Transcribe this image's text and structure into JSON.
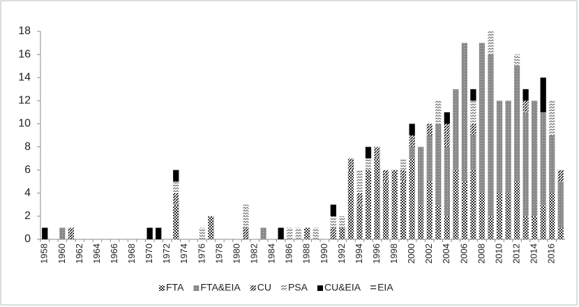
{
  "chart_data": {
    "type": "stacked-bar",
    "categories": [
      "1958",
      null,
      "1960",
      null,
      "1962",
      null,
      "1964",
      null,
      "1966",
      null,
      "1968",
      null,
      "1970",
      null,
      "1972",
      null,
      "1974",
      null,
      "1976",
      null,
      "1978",
      null,
      "1980",
      null,
      "1982",
      null,
      "1984",
      null,
      "1986",
      null,
      "1988",
      null,
      "1990",
      null,
      "1992",
      null,
      "1994",
      null,
      "1996",
      null,
      "1998",
      null,
      "2000",
      null,
      "2002",
      null,
      "2004",
      null,
      "2006",
      null,
      "2008",
      null,
      "2010",
      null,
      "2012",
      null,
      "2014",
      null,
      "2016",
      null
    ],
    "series": [
      {
        "name": "FTA",
        "color": "#222222",
        "pattern": "checker",
        "values": [
          0,
          0,
          0,
          0,
          0,
          0,
          0,
          0,
          0,
          0,
          0,
          0,
          0,
          0,
          0,
          3,
          0,
          0,
          0,
          2,
          0,
          0,
          0,
          0,
          0,
          0,
          0,
          0,
          0,
          0,
          1,
          0,
          0,
          0,
          1,
          6,
          3,
          6,
          7,
          5,
          6,
          5,
          7,
          3,
          5,
          3,
          2,
          6,
          5,
          6,
          4,
          2,
          4,
          4,
          5,
          2,
          2,
          3,
          4,
          1
        ]
      },
      {
        "name": "FTA&EIA",
        "color": "#8a8a8a",
        "pattern": "dots",
        "values": [
          0,
          0,
          1,
          0,
          0,
          0,
          0,
          0,
          0,
          0,
          0,
          0,
          0,
          0,
          0,
          0,
          0,
          0,
          0,
          0,
          0,
          0,
          0,
          0,
          0,
          1,
          0,
          0,
          0,
          0,
          0,
          0,
          0,
          0,
          0,
          0,
          0,
          0,
          0,
          0,
          0,
          0,
          1,
          5,
          4,
          7,
          6,
          7,
          12,
          3,
          13,
          14,
          8,
          8,
          10,
          9,
          10,
          8,
          5,
          4
        ]
      },
      {
        "name": "CU",
        "color": "#111111",
        "pattern": "diagonal",
        "values": [
          0,
          0,
          0,
          1,
          0,
          0,
          0,
          0,
          0,
          0,
          0,
          0,
          0,
          0,
          0,
          1,
          0,
          0,
          0,
          0,
          0,
          0,
          0,
          1,
          0,
          0,
          0,
          0,
          0,
          0,
          0,
          0,
          0,
          1,
          0,
          1,
          1,
          0,
          1,
          1,
          0,
          1,
          1,
          0,
          1,
          0,
          2,
          0,
          0,
          1,
          0,
          0,
          0,
          0,
          0,
          1,
          0,
          0,
          0,
          1
        ]
      },
      {
        "name": "PSA",
        "color": "#666666",
        "pattern": "chevron",
        "values": [
          0,
          0,
          0,
          0,
          0,
          0,
          0,
          0,
          0,
          0,
          0,
          0,
          0,
          0,
          0,
          1,
          0,
          0,
          1,
          0,
          0,
          0,
          0,
          2,
          0,
          0,
          0,
          0,
          1,
          1,
          0,
          1,
          0,
          1,
          1,
          0,
          2,
          1,
          0,
          0,
          0,
          1,
          0,
          0,
          0,
          2,
          0,
          0,
          0,
          2,
          0,
          2,
          0,
          0,
          1,
          0,
          0,
          0,
          3,
          0
        ]
      },
      {
        "name": "CU&EIA",
        "color": "#000000",
        "pattern": "solid",
        "values": [
          1,
          0,
          0,
          0,
          0,
          0,
          0,
          0,
          0,
          0,
          0,
          0,
          1,
          1,
          0,
          1,
          0,
          0,
          0,
          0,
          0,
          0,
          0,
          0,
          0,
          0,
          0,
          1,
          0,
          0,
          0,
          0,
          0,
          1,
          0,
          0,
          0,
          1,
          0,
          0,
          0,
          0,
          1,
          0,
          0,
          0,
          1,
          0,
          0,
          1,
          0,
          0,
          0,
          0,
          0,
          1,
          0,
          3,
          0,
          0
        ]
      },
      {
        "name": "EIA",
        "color": "#444444",
        "pattern": "hlines",
        "values": [
          0,
          0,
          0,
          0,
          0,
          0,
          0,
          0,
          0,
          0,
          0,
          0,
          0,
          0,
          0,
          0,
          0,
          0,
          0,
          0,
          0,
          0,
          0,
          0,
          0,
          0,
          0,
          0,
          0,
          0,
          0,
          0,
          0,
          0,
          0,
          0,
          0,
          0,
          0,
          0,
          0,
          0,
          0,
          0,
          0,
          0,
          0,
          0,
          0,
          0,
          0,
          0,
          0,
          0,
          0,
          0,
          0,
          0,
          0,
          0
        ]
      }
    ],
    "ylim": [
      0,
      18
    ],
    "yticks": [
      0,
      2,
      4,
      6,
      8,
      10,
      12,
      14,
      16,
      18
    ],
    "grid": false,
    "legend": "bottom"
  }
}
